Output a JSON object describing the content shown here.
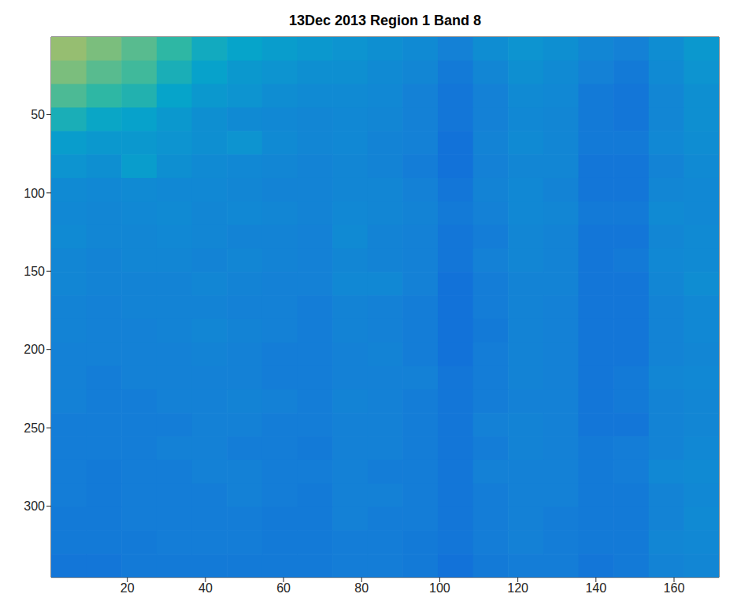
{
  "chart_data": {
    "type": "heatmap",
    "title": "13Dec 2013 Region 1 Band 8",
    "xlim": [
      0.5,
      171.5
    ],
    "xticks": [
      20,
      40,
      60,
      80,
      100,
      120,
      140,
      160
    ],
    "ylim": [
      0.5,
      345.5
    ],
    "yticks": [
      50,
      100,
      150,
      200,
      250,
      300
    ],
    "clim": [
      0,
      1
    ],
    "cell_x": [
      5,
      14,
      23,
      32,
      41,
      50,
      59,
      68,
      77,
      86,
      95,
      104,
      113,
      122,
      131,
      140,
      149,
      158,
      167
    ],
    "cell_y": [
      8,
      23,
      38,
      53,
      68,
      83,
      98,
      113,
      128,
      143,
      158,
      173,
      188,
      203,
      218,
      233,
      248,
      263,
      278,
      293,
      308,
      323,
      338
    ],
    "cells": [
      [
        0.72,
        0.68,
        0.62,
        0.55,
        0.48,
        0.45,
        0.42,
        0.4,
        0.38,
        0.36,
        0.34,
        0.3,
        0.35,
        0.38,
        0.36,
        0.32,
        0.3,
        0.35,
        0.4
      ],
      [
        0.68,
        0.62,
        0.58,
        0.5,
        0.44,
        0.4,
        0.38,
        0.36,
        0.36,
        0.34,
        0.32,
        0.28,
        0.32,
        0.36,
        0.34,
        0.3,
        0.28,
        0.34,
        0.38
      ],
      [
        0.6,
        0.55,
        0.52,
        0.45,
        0.4,
        0.38,
        0.35,
        0.34,
        0.34,
        0.33,
        0.3,
        0.27,
        0.3,
        0.34,
        0.33,
        0.28,
        0.27,
        0.32,
        0.36
      ],
      [
        0.5,
        0.46,
        0.44,
        0.4,
        0.36,
        0.34,
        0.33,
        0.32,
        0.33,
        0.32,
        0.3,
        0.27,
        0.3,
        0.33,
        0.32,
        0.28,
        0.27,
        0.32,
        0.36
      ],
      [
        0.42,
        0.4,
        0.4,
        0.38,
        0.36,
        0.38,
        0.34,
        0.32,
        0.33,
        0.31,
        0.3,
        0.26,
        0.31,
        0.34,
        0.32,
        0.28,
        0.28,
        0.33,
        0.35
      ],
      [
        0.38,
        0.36,
        0.42,
        0.36,
        0.34,
        0.33,
        0.32,
        0.31,
        0.32,
        0.31,
        0.29,
        0.26,
        0.3,
        0.32,
        0.32,
        0.27,
        0.27,
        0.31,
        0.34
      ],
      [
        0.34,
        0.33,
        0.34,
        0.33,
        0.33,
        0.32,
        0.31,
        0.31,
        0.32,
        0.32,
        0.3,
        0.27,
        0.31,
        0.33,
        0.31,
        0.27,
        0.27,
        0.32,
        0.33
      ],
      [
        0.33,
        0.32,
        0.33,
        0.34,
        0.32,
        0.33,
        0.32,
        0.31,
        0.33,
        0.32,
        0.31,
        0.28,
        0.3,
        0.33,
        0.32,
        0.28,
        0.28,
        0.34,
        0.33
      ],
      [
        0.34,
        0.32,
        0.32,
        0.33,
        0.32,
        0.31,
        0.31,
        0.3,
        0.34,
        0.31,
        0.3,
        0.27,
        0.29,
        0.32,
        0.31,
        0.27,
        0.27,
        0.32,
        0.34
      ],
      [
        0.32,
        0.31,
        0.32,
        0.32,
        0.31,
        0.32,
        0.31,
        0.3,
        0.32,
        0.31,
        0.3,
        0.27,
        0.3,
        0.32,
        0.31,
        0.27,
        0.28,
        0.33,
        0.34
      ],
      [
        0.32,
        0.31,
        0.31,
        0.31,
        0.32,
        0.31,
        0.3,
        0.3,
        0.33,
        0.33,
        0.3,
        0.26,
        0.29,
        0.31,
        0.31,
        0.27,
        0.27,
        0.32,
        0.35
      ],
      [
        0.31,
        0.3,
        0.31,
        0.31,
        0.31,
        0.3,
        0.3,
        0.29,
        0.31,
        0.3,
        0.29,
        0.26,
        0.29,
        0.31,
        0.3,
        0.27,
        0.27,
        0.31,
        0.33
      ],
      [
        0.31,
        0.3,
        0.3,
        0.31,
        0.32,
        0.31,
        0.3,
        0.29,
        0.31,
        0.3,
        0.29,
        0.26,
        0.28,
        0.31,
        0.3,
        0.27,
        0.27,
        0.31,
        0.33
      ],
      [
        0.3,
        0.3,
        0.3,
        0.3,
        0.31,
        0.3,
        0.29,
        0.29,
        0.3,
        0.31,
        0.29,
        0.26,
        0.29,
        0.31,
        0.3,
        0.27,
        0.27,
        0.31,
        0.32
      ],
      [
        0.3,
        0.29,
        0.3,
        0.3,
        0.3,
        0.3,
        0.29,
        0.29,
        0.3,
        0.3,
        0.3,
        0.27,
        0.29,
        0.31,
        0.3,
        0.27,
        0.28,
        0.32,
        0.33
      ],
      [
        0.3,
        0.29,
        0.29,
        0.3,
        0.3,
        0.31,
        0.3,
        0.29,
        0.31,
        0.3,
        0.29,
        0.27,
        0.29,
        0.3,
        0.3,
        0.27,
        0.28,
        0.31,
        0.32
      ],
      [
        0.29,
        0.29,
        0.29,
        0.29,
        0.3,
        0.3,
        0.29,
        0.29,
        0.3,
        0.3,
        0.29,
        0.27,
        0.3,
        0.31,
        0.3,
        0.27,
        0.27,
        0.31,
        0.32
      ],
      [
        0.29,
        0.29,
        0.29,
        0.3,
        0.3,
        0.29,
        0.29,
        0.28,
        0.3,
        0.3,
        0.29,
        0.27,
        0.29,
        0.31,
        0.3,
        0.28,
        0.29,
        0.31,
        0.33
      ],
      [
        0.29,
        0.28,
        0.29,
        0.29,
        0.3,
        0.3,
        0.29,
        0.29,
        0.3,
        0.29,
        0.29,
        0.27,
        0.3,
        0.3,
        0.3,
        0.28,
        0.29,
        0.33,
        0.34
      ],
      [
        0.29,
        0.28,
        0.29,
        0.29,
        0.29,
        0.3,
        0.29,
        0.28,
        0.3,
        0.3,
        0.29,
        0.27,
        0.29,
        0.3,
        0.3,
        0.28,
        0.28,
        0.31,
        0.33
      ],
      [
        0.28,
        0.28,
        0.29,
        0.29,
        0.29,
        0.29,
        0.28,
        0.28,
        0.3,
        0.29,
        0.29,
        0.27,
        0.29,
        0.3,
        0.29,
        0.28,
        0.28,
        0.31,
        0.34
      ],
      [
        0.28,
        0.28,
        0.28,
        0.29,
        0.29,
        0.29,
        0.28,
        0.28,
        0.29,
        0.29,
        0.28,
        0.27,
        0.29,
        0.3,
        0.29,
        0.28,
        0.28,
        0.32,
        0.33
      ],
      [
        0.27,
        0.27,
        0.28,
        0.28,
        0.28,
        0.28,
        0.28,
        0.28,
        0.29,
        0.29,
        0.28,
        0.26,
        0.28,
        0.29,
        0.29,
        0.27,
        0.28,
        0.31,
        0.32
      ]
    ]
  }
}
